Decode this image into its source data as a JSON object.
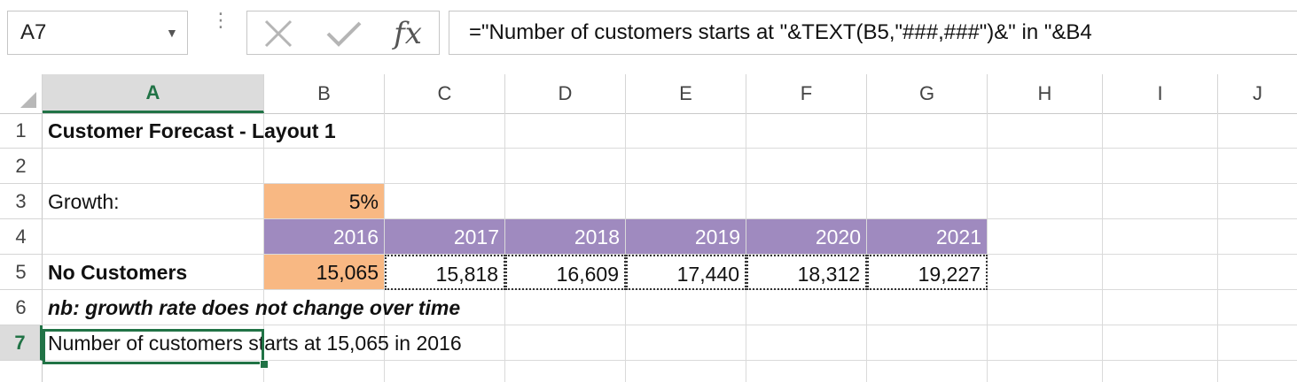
{
  "formula_bar": {
    "name_box": "A7",
    "fx_label": "fx",
    "formula": "=\"Number of customers starts at \"&TEXT(B5,\"###,###\")&\" in \"&B4"
  },
  "columns": [
    "A",
    "B",
    "C",
    "D",
    "E",
    "F",
    "G",
    "H",
    "I",
    "J"
  ],
  "rows": [
    "1",
    "2",
    "3",
    "4",
    "5",
    "6",
    "7"
  ],
  "selected_column": "A",
  "selected_row": "7",
  "sheet": {
    "a1": "Customer Forecast - Layout 1",
    "a3": "Growth:",
    "b3": "5%",
    "years": [
      "2016",
      "2017",
      "2018",
      "2019",
      "2020",
      "2021"
    ],
    "a5": "No Customers",
    "customers": [
      "15,065",
      "15,818",
      "16,609",
      "17,440",
      "18,312",
      "19,227"
    ],
    "a6": "nb: growth rate does not change over time",
    "a7": "Number of customers starts at 15,065 in 2016"
  },
  "colors": {
    "input_cell": "#f8b883",
    "header_band": "#9f8abf",
    "selection": "#217346"
  }
}
